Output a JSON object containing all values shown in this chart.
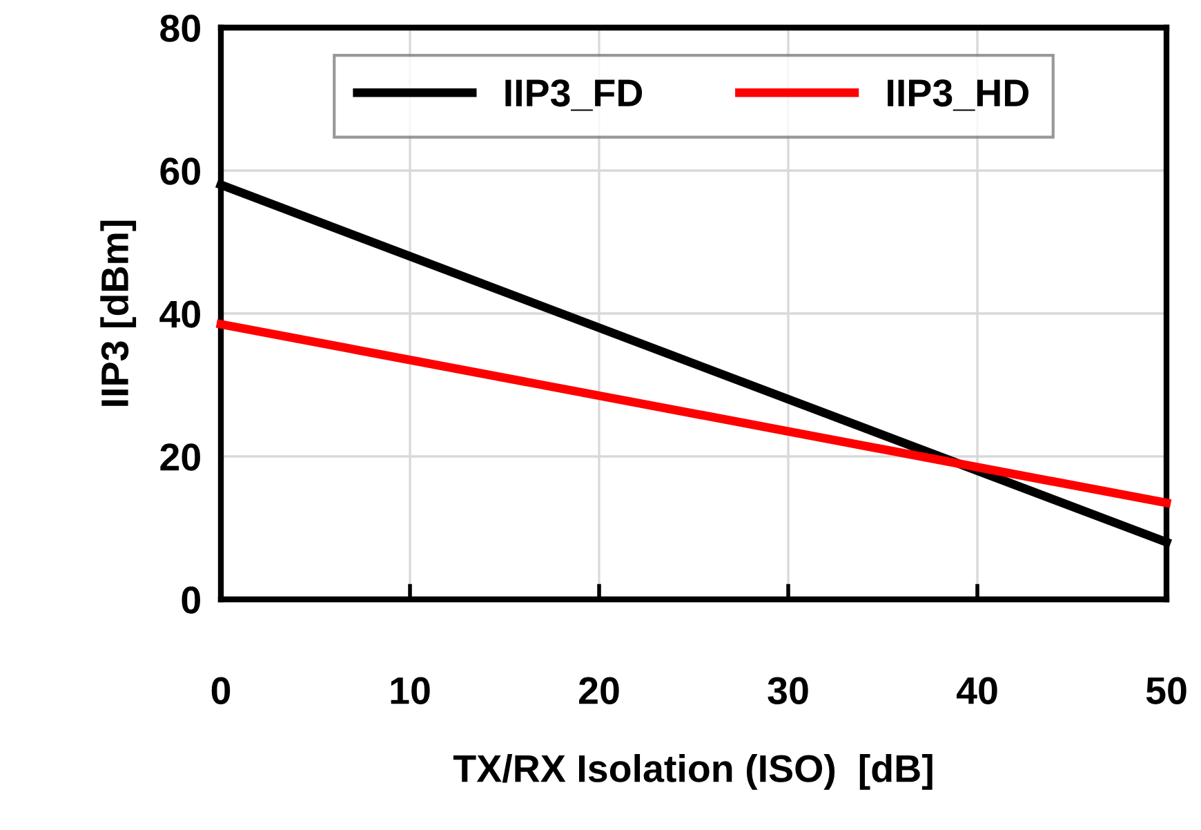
{
  "chart_data": {
    "type": "line",
    "xlabel": "TX/RX Isolation (ISO)  [dB]",
    "ylabel": "IIP3 [dBm]",
    "x": [
      0,
      50
    ],
    "series": [
      {
        "name": "IIP3_FD",
        "color": "#000000",
        "values": [
          58,
          8
        ]
      },
      {
        "name": "IIP3_HD",
        "color": "#ff0000",
        "values": [
          38.5,
          13.5
        ]
      }
    ],
    "xlim": [
      0,
      50
    ],
    "xticks": [
      0,
      10,
      20,
      30,
      40,
      50
    ],
    "ylim": [
      0,
      80
    ],
    "yticks": [
      0,
      20,
      40,
      60,
      80
    ],
    "grid": true,
    "legend": "top",
    "marker": "none",
    "line_style": "solid"
  }
}
